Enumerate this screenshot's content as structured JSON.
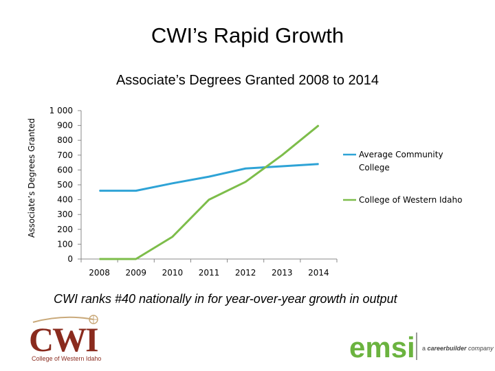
{
  "slide": {
    "title": "CWI’s Rapid Growth",
    "caption": "CWI ranks #40 nationally in for year-over-year growth in output"
  },
  "logos": {
    "cwi_text": "CWI",
    "cwi_subtext": "College of Western Idaho",
    "emsi_text": "emsi",
    "emsi_tag_prefix": "a",
    "emsi_tag_brand": "careerbuilder",
    "emsi_tag_suffix": "company",
    "cwi_color": "#8a2b1e",
    "emsi_color": "#6bb33f"
  },
  "chart_data": {
    "type": "line",
    "title": "Associate’s Degrees Granted 2008 to 2014",
    "xlabel": "",
    "ylabel": "Associate’s Degrees Granted",
    "categories": [
      "2008",
      "2009",
      "2010",
      "2011",
      "2012",
      "2013",
      "2014"
    ],
    "ylim": [
      0,
      1000
    ],
    "yticks": [
      0,
      100,
      200,
      300,
      400,
      500,
      600,
      700,
      800,
      900,
      1000
    ],
    "ytick_labels": [
      "0",
      "100",
      "200",
      "300",
      "400",
      "500",
      "600",
      "700",
      "800",
      "900",
      "1 000"
    ],
    "grid": false,
    "legend_position": "right",
    "series": [
      {
        "name_lines": [
          "Average Community",
          "College"
        ],
        "color": "#2ea3d6",
        "values": [
          460,
          460,
          510,
          555,
          610,
          625,
          640
        ]
      },
      {
        "name_lines": [
          "College of Western Idaho"
        ],
        "color": "#7dbd4a",
        "values": [
          0,
          0,
          150,
          400,
          520,
          700,
          900
        ]
      }
    ]
  }
}
